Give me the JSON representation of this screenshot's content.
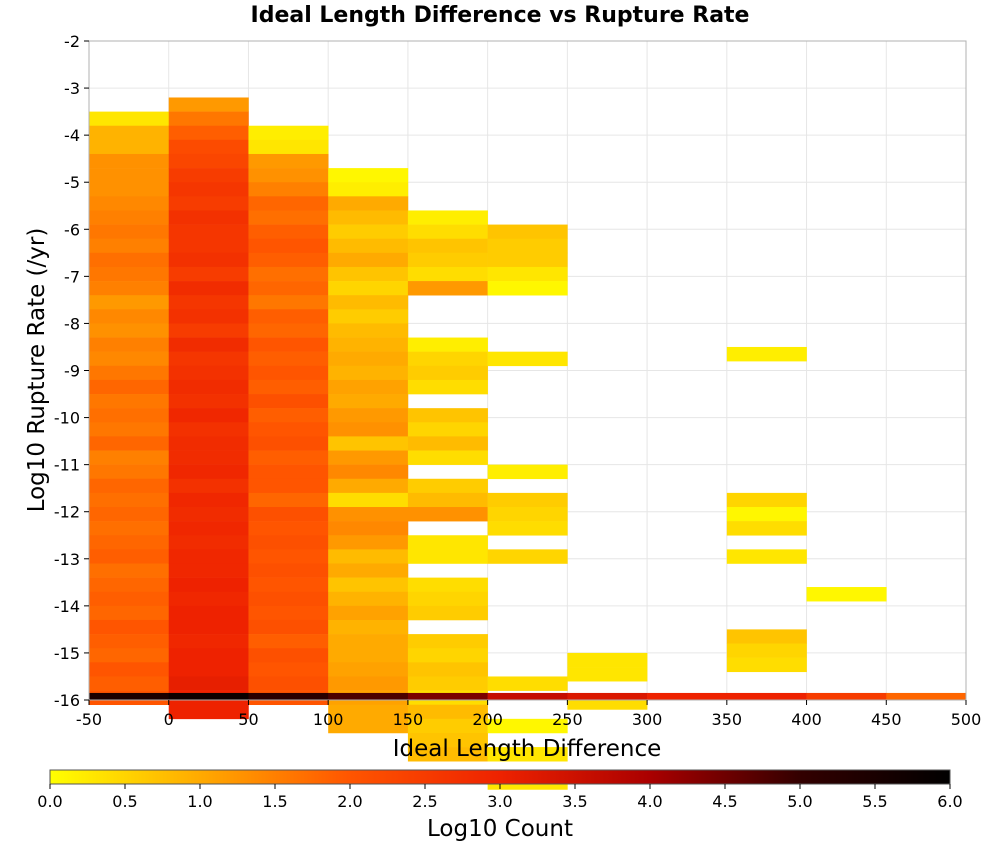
{
  "chart_data": {
    "type": "heatmap",
    "title": "Ideal Length Difference vs Rupture Rate",
    "xlabel": "Ideal Length Difference",
    "ylabel": "Log10 Rupture Rate (/yr)",
    "xlim": [
      -50,
      500
    ],
    "ylim": [
      -16,
      -2
    ],
    "x_ticks": [
      "-50",
      "0",
      "50",
      "100",
      "150",
      "200",
      "250",
      "300",
      "350",
      "400",
      "450",
      "500"
    ],
    "y_ticks": [
      "-2",
      "-3",
      "-4",
      "-5",
      "-6",
      "-7",
      "-8",
      "-9",
      "-10",
      "-11",
      "-12",
      "-13",
      "-14",
      "-15",
      "-16"
    ],
    "grid": true,
    "x_bin_width": 50,
    "y_bin_height": 0.3,
    "colorbar": {
      "label": "Log10 Count",
      "range": [
        0,
        6
      ],
      "ticks": [
        "0.0",
        "0.5",
        "1.0",
        "1.5",
        "2.0",
        "2.5",
        "3.0",
        "3.5",
        "4.0",
        "4.5",
        "5.0",
        "5.5",
        "6.0"
      ],
      "colors": [
        "#ffff00",
        "#ffaa00",
        "#ff5500",
        "#ee2200",
        "#aa0000",
        "#330000",
        "#000000"
      ]
    },
    "columns": [
      {
        "x": -50,
        "y0": -3.5,
        "values": [
          0.3,
          0.9,
          0.9,
          1.3,
          1.3,
          1.3,
          1.4,
          1.5,
          1.6,
          1.5,
          1.7,
          1.6,
          1.5,
          1.2,
          1.4,
          1.3,
          1.5,
          1.4,
          1.6,
          1.8,
          1.6,
          1.7,
          1.6,
          1.8,
          1.5,
          1.6,
          1.8,
          1.7,
          1.8,
          1.7,
          1.8,
          1.9,
          1.7,
          1.8,
          1.9,
          1.8,
          2.0,
          1.9,
          1.8,
          2.0,
          1.9,
          2.0
        ]
      },
      {
        "x": 0,
        "y0": -3.2,
        "values": [
          1.2,
          1.6,
          1.9,
          2.2,
          2.3,
          2.5,
          2.6,
          2.5,
          2.7,
          2.6,
          2.6,
          2.7,
          2.5,
          2.8,
          2.6,
          2.7,
          2.5,
          2.8,
          2.6,
          2.7,
          2.8,
          2.7,
          2.9,
          2.7,
          2.8,
          2.8,
          2.9,
          2.7,
          2.9,
          2.8,
          2.9,
          2.8,
          2.9,
          2.9,
          3.0,
          2.9,
          3.0,
          3.0,
          2.9,
          3.0,
          3.0,
          3.1,
          3.0,
          3.0
        ]
      },
      {
        "x": 50,
        "y0": -3.8,
        "values": [
          0.2,
          0.3,
          1.2,
          1.3,
          1.5,
          1.8,
          1.7,
          1.9,
          2.0,
          1.9,
          1.7,
          1.8,
          1.6,
          1.9,
          1.8,
          2.0,
          1.9,
          2.0,
          1.9,
          2.1,
          1.9,
          2.0,
          2.1,
          1.9,
          2.0,
          2.0,
          1.8,
          2.1,
          2.0,
          2.1,
          2.0,
          2.1,
          2.0,
          2.1,
          2.0,
          2.1,
          1.9,
          2.1,
          2.0,
          2.1,
          2.0
        ]
      },
      {
        "x": 100,
        "y0": -4.7,
        "values": [
          0.1,
          0.2,
          1.0,
          0.8,
          0.6,
          0.8,
          1.0,
          0.7,
          0.5,
          0.8,
          0.6,
          0.8,
          0.9,
          1.0,
          0.9,
          1.1,
          1.0,
          1.2,
          1.3,
          0.7,
          1.2,
          1.4,
          1.0,
          0.4,
          1.3,
          1.4,
          1.2,
          0.8,
          1.0,
          0.7,
          0.9,
          1.1,
          0.9,
          1.0,
          1.0,
          1.1,
          1.2,
          1.1,
          1.0,
          1.0
        ]
      },
      {
        "x": 150,
        "y0": -5.6,
        "values": [
          0.2,
          0.4,
          0.7,
          0.6,
          0.4,
          1.2,
          null,
          null,
          null,
          0.2,
          0.5,
          0.6,
          0.4,
          null,
          0.7,
          0.5,
          0.8,
          0.4,
          null,
          0.6,
          0.8,
          1.3,
          null,
          0.3,
          0.3,
          null,
          0.4,
          0.5,
          0.6,
          null,
          0.6,
          0.5,
          0.7,
          0.6,
          0.4,
          0.8,
          0.6,
          0.7,
          0.8
        ]
      },
      {
        "x": 200,
        "y0": -5.9,
        "values": [
          0.7,
          0.6,
          0.6,
          0.3,
          0.1,
          null,
          null,
          null,
          null,
          0.3,
          null,
          null,
          null,
          null,
          null,
          null,
          null,
          0.2,
          null,
          0.6,
          0.5,
          0.4,
          null,
          0.5,
          null,
          null,
          null,
          null,
          null,
          null,
          null,
          null,
          0.4,
          null,
          null,
          0.1,
          null,
          0.3,
          null,
          0.3
        ]
      },
      {
        "x": 250,
        "y0": -15.0,
        "values": [
          0.3,
          0.3,
          null,
          0.4
        ]
      },
      {
        "x": 350,
        "y0": -8.5,
        "values": [
          0.2
        ]
      },
      {
        "x": 350,
        "y0": -11.6,
        "values": [
          0.5,
          0.1,
          0.4,
          null,
          0.3
        ]
      },
      {
        "x": 350,
        "y0": -14.5,
        "values": [
          0.7,
          0.5,
          0.4
        ]
      },
      {
        "x": 400,
        "y0": -13.6,
        "values": [
          0.1
        ]
      }
    ],
    "bottom_row": {
      "y0": -15.85,
      "y1": -16.0,
      "values": [
        {
          "x": -50,
          "v": 5.5
        },
        {
          "x": 0,
          "v": 5.8
        },
        {
          "x": 50,
          "v": 5.2
        },
        {
          "x": 100,
          "v": 4.8
        },
        {
          "x": 150,
          "v": 4.4
        },
        {
          "x": 200,
          "v": 3.6
        },
        {
          "x": 250,
          "v": 3.3
        },
        {
          "x": 300,
          "v": 3.0
        },
        {
          "x": 350,
          "v": 3.0
        },
        {
          "x": 400,
          "v": 2.5
        },
        {
          "x": 450,
          "v": 1.8
        }
      ]
    }
  }
}
